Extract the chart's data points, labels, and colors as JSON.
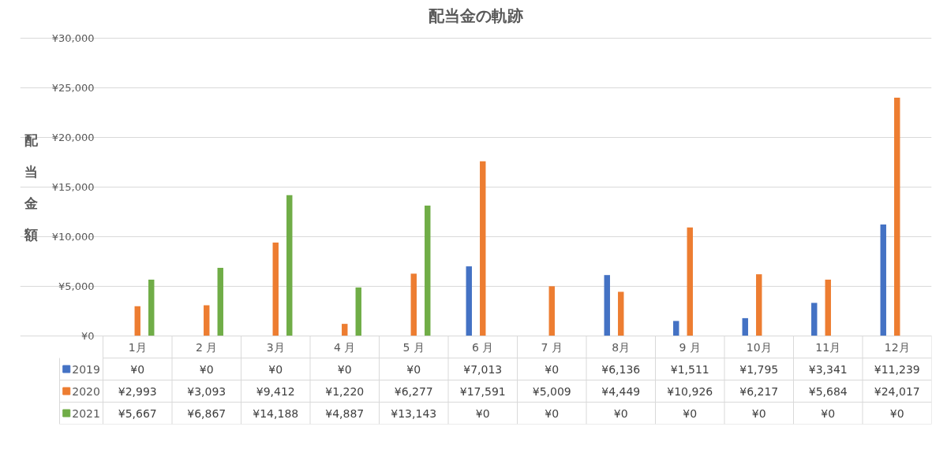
{
  "chart_data": {
    "type": "bar",
    "title": "配当金の軌跡",
    "ylabel": "配当金額",
    "categories": [
      "1月",
      "2 月",
      "3月",
      "4 月",
      "5 月",
      "6 月",
      "7 月",
      "8月",
      "9 月",
      "10月",
      "11月",
      "12月"
    ],
    "series": [
      {
        "name": "2019",
        "color": "#4472c4",
        "values": [
          0,
          0,
          0,
          0,
          0,
          7013,
          0,
          6136,
          1511,
          1795,
          3341,
          11239
        ],
        "value_labels": [
          "¥0",
          "¥0",
          "¥0",
          "¥0",
          "¥0",
          "¥7,013",
          "¥0",
          "¥6,136",
          "¥1,511",
          "¥1,795",
          "¥3,341",
          "¥11,239"
        ]
      },
      {
        "name": "2020",
        "color": "#ed7d31",
        "values": [
          2993,
          3093,
          9412,
          1220,
          6277,
          17591,
          5009,
          4449,
          10926,
          6217,
          5684,
          24017
        ],
        "value_labels": [
          "¥2,993",
          "¥3,093",
          "¥9,412",
          "¥1,220",
          "¥6,277",
          "¥17,591",
          "¥5,009",
          "¥4,449",
          "¥10,926",
          "¥6,217",
          "¥5,684",
          "¥24,017"
        ]
      },
      {
        "name": "2021",
        "color": "#70ad47",
        "values": [
          5667,
          6867,
          14188,
          4887,
          13143,
          0,
          0,
          0,
          0,
          0,
          0,
          0
        ],
        "value_labels": [
          "¥5,667",
          "¥6,867",
          "¥14,188",
          "¥4,887",
          "¥13,143",
          "¥0",
          "¥0",
          "¥0",
          "¥0",
          "¥0",
          "¥0",
          "¥0"
        ]
      }
    ],
    "ylim": [
      0,
      30000
    ],
    "yticks": [
      {
        "value": 0,
        "label": "¥0"
      },
      {
        "value": 5000,
        "label": "¥5,000"
      },
      {
        "value": 10000,
        "label": "¥10,000"
      },
      {
        "value": 15000,
        "label": "¥15,000"
      },
      {
        "value": 20000,
        "label": "¥20,000"
      },
      {
        "value": 25000,
        "label": "¥25,000"
      },
      {
        "value": 30000,
        "label": "¥30,000"
      }
    ],
    "grid": "y",
    "legend": "bottom"
  }
}
